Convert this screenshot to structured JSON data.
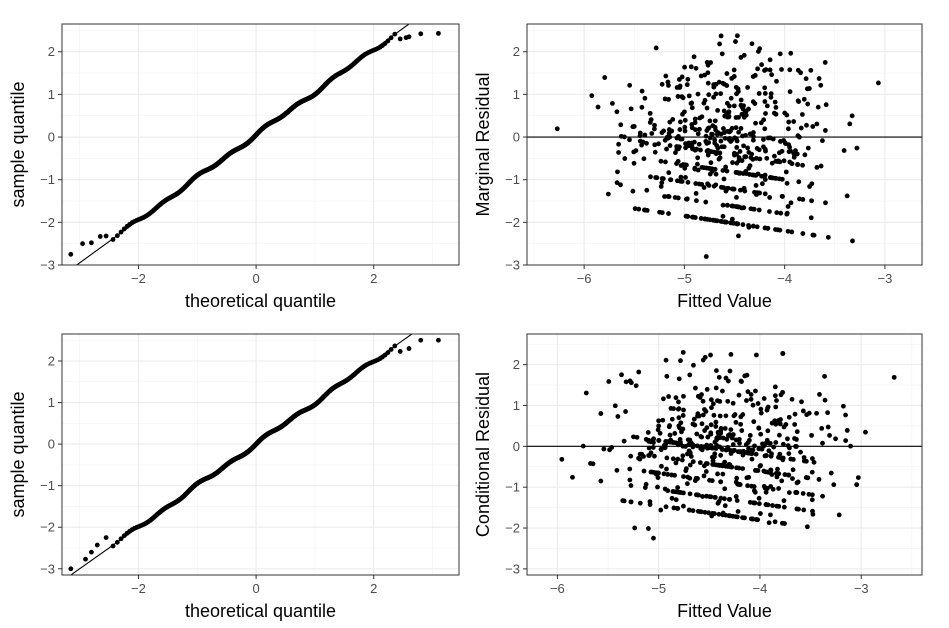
{
  "colors": {
    "point": "#000000",
    "grid": "#ebebeb",
    "panel_border": "#333333",
    "tick_text": "#4d4d4d"
  },
  "chart_data": [
    {
      "type": "scatter",
      "kind": "qq",
      "xlabel": "theoretical quantile",
      "ylabel": "sample quantile",
      "xlim": [
        -3.3,
        3.45
      ],
      "ylim": [
        -3.0,
        2.65
      ],
      "xticks": [
        -2,
        0,
        2
      ],
      "yticks": [
        -3,
        -2,
        -1,
        0,
        1,
        2
      ],
      "ref_line": {
        "intercept": 0.05,
        "slope": 1.0
      },
      "n_points": 600,
      "tail_points": [
        {
          "x": -3.15,
          "y": -2.75
        },
        {
          "x": -2.95,
          "y": -2.5
        },
        {
          "x": -2.8,
          "y": -2.48
        },
        {
          "x": -2.65,
          "y": -2.33
        },
        {
          "x": -2.55,
          "y": -2.32
        },
        {
          "x": 2.45,
          "y": 2.3
        },
        {
          "x": 2.55,
          "y": 2.33
        },
        {
          "x": 2.6,
          "y": 2.35
        },
        {
          "x": 2.8,
          "y": 2.42
        },
        {
          "x": 3.1,
          "y": 2.43
        }
      ],
      "grid": true
    },
    {
      "type": "scatter",
      "kind": "residual",
      "xlabel": "Fitted Value",
      "ylabel": "Marginal Residual",
      "xlim": [
        -6.57,
        -2.63
      ],
      "ylim": [
        -3.0,
        2.65
      ],
      "xticks": [
        -6,
        -5,
        -4,
        -3
      ],
      "yticks": [
        -3,
        -2,
        -1,
        0,
        1,
        2
      ],
      "hline": 0,
      "n_points": 600,
      "grid": true
    },
    {
      "type": "scatter",
      "kind": "qq",
      "xlabel": "theoretical quantile",
      "ylabel": "sample quantile",
      "xlim": [
        -3.3,
        3.45
      ],
      "ylim": [
        -3.15,
        2.65
      ],
      "xticks": [
        -2,
        0,
        2
      ],
      "yticks": [
        -3,
        -2,
        -1,
        0,
        1,
        2
      ],
      "ref_line": {
        "intercept": 0.0,
        "slope": 1.0
      },
      "n_points": 600,
      "tail_points": [
        {
          "x": -3.15,
          "y": -3.0
        },
        {
          "x": -2.9,
          "y": -2.77
        },
        {
          "x": -2.8,
          "y": -2.6
        },
        {
          "x": -2.7,
          "y": -2.43
        },
        {
          "x": -2.55,
          "y": -2.25
        },
        {
          "x": 2.45,
          "y": 2.23
        },
        {
          "x": 2.6,
          "y": 2.3
        },
        {
          "x": 2.8,
          "y": 2.5
        },
        {
          "x": 3.1,
          "y": 2.5
        }
      ],
      "grid": true
    },
    {
      "type": "scatter",
      "kind": "residual",
      "xlabel": "Fitted Value",
      "ylabel": "Conditional Residual",
      "xlim": [
        -6.3,
        -2.4
      ],
      "ylim": [
        -3.15,
        2.75
      ],
      "xticks": [
        -6,
        -5,
        -4,
        -3
      ],
      "yticks": [
        -3,
        -2,
        -1,
        0,
        1,
        2
      ],
      "hline": 0,
      "n_points": 600,
      "grid": true
    }
  ]
}
